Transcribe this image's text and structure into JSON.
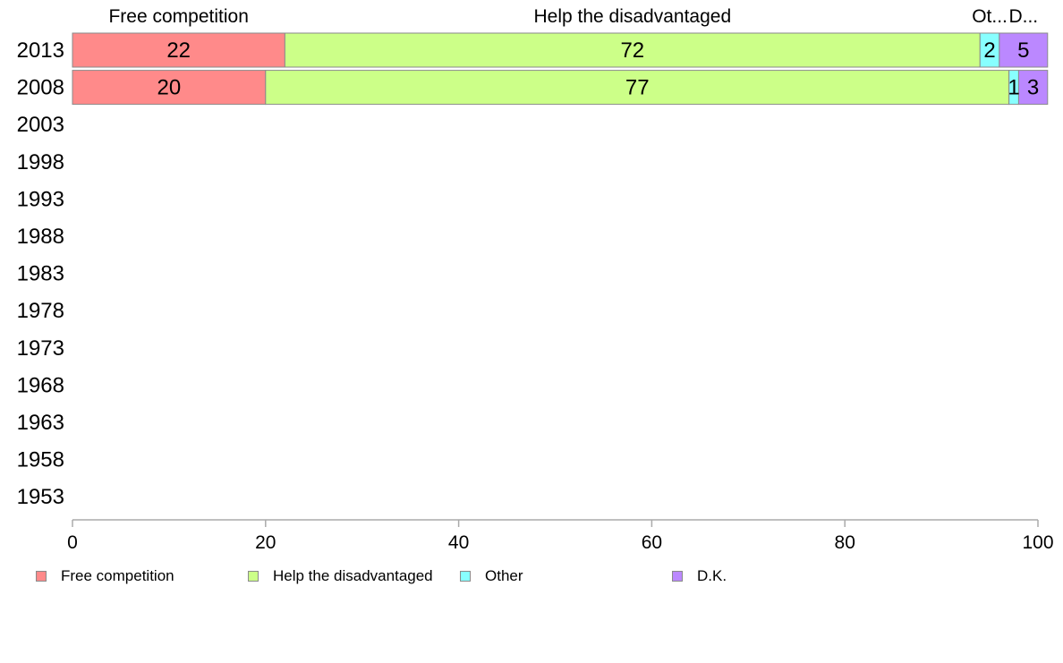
{
  "chart_data": {
    "type": "bar",
    "orientation": "horizontal",
    "stacked": true,
    "categories": [
      "2013",
      "2008",
      "2003",
      "1998",
      "1993",
      "1988",
      "1983",
      "1978",
      "1973",
      "1968",
      "1963",
      "1958",
      "1953"
    ],
    "series": [
      {
        "name": "Free competition",
        "values": [
          22,
          20,
          null,
          null,
          null,
          null,
          null,
          null,
          null,
          null,
          null,
          null,
          null
        ],
        "color": "#ff8a8a"
      },
      {
        "name": "Help the disadvantaged",
        "values": [
          72,
          77,
          null,
          null,
          null,
          null,
          null,
          null,
          null,
          null,
          null,
          null,
          null
        ],
        "color": "#ccff88"
      },
      {
        "name": "Other",
        "values": [
          2,
          1,
          null,
          null,
          null,
          null,
          null,
          null,
          null,
          null,
          null,
          null,
          null
        ],
        "color": "#88ffff"
      },
      {
        "name": "D.K.",
        "values": [
          5,
          3,
          null,
          null,
          null,
          null,
          null,
          null,
          null,
          null,
          null,
          null,
          null
        ],
        "color": "#bb88ff"
      }
    ],
    "top_labels": [
      "Free competition",
      "Help the disadvantaged",
      "Ot...",
      "D..."
    ],
    "x_ticks": [
      0,
      20,
      40,
      60,
      80,
      100
    ],
    "xlim": [
      0,
      100
    ],
    "grid": false,
    "legend_position": "bottom-left"
  }
}
